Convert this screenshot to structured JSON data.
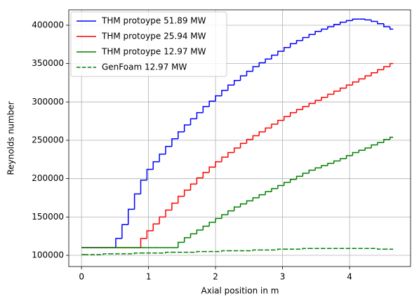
{
  "chart_data": {
    "type": "line",
    "drawstyle": "steps-mid",
    "xlabel": "Axial position in m",
    "ylabel": "Reynolds number",
    "x": [
      0,
      0.093,
      0.186,
      0.279,
      0.372,
      0.465,
      0.558,
      0.651,
      0.744,
      0.837,
      0.93,
      1.023,
      1.116,
      1.209,
      1.302,
      1.395,
      1.488,
      1.581,
      1.674,
      1.767,
      1.86,
      1.953,
      2.046,
      2.139,
      2.232,
      2.325,
      2.418,
      2.511,
      2.604,
      2.697,
      2.79,
      2.883,
      2.976,
      3.069,
      3.162,
      3.255,
      3.348,
      3.441,
      3.534,
      3.627,
      3.72,
      3.813,
      3.906,
      3.999,
      4.092,
      4.185,
      4.278,
      4.371,
      4.464,
      4.557,
      4.65
    ],
    "series": [
      {
        "name": "THM protoype 51.89 MW",
        "color": "#0000ff",
        "dash": false,
        "values": [
          110000,
          110000,
          110000,
          110000,
          110000,
          110000,
          122000,
          140000,
          160000,
          180000,
          198000,
          212000,
          222000,
          232000,
          242000,
          252000,
          261000,
          270000,
          278000,
          286000,
          294000,
          301000,
          308000,
          315000,
          322000,
          328000,
          334000,
          340000,
          346000,
          351000,
          356000,
          361000,
          366000,
          371000,
          376000,
          380000,
          384000,
          388000,
          392000,
          395000,
          398000,
          401000,
          404000,
          406000,
          408000,
          408000,
          407000,
          405000,
          402000,
          398000,
          395000
        ]
      },
      {
        "name": "THM protoype 25.94 MW",
        "color": "#ff0000",
        "dash": false,
        "values": [
          110000,
          110000,
          110000,
          110000,
          110000,
          110000,
          110000,
          110000,
          110000,
          110000,
          122000,
          132000,
          141000,
          150000,
          159000,
          168000,
          177000,
          185000,
          193000,
          201000,
          208000,
          215000,
          222000,
          228000,
          234000,
          240000,
          246000,
          251000,
          256000,
          261000,
          266000,
          271000,
          276000,
          281000,
          286000,
          290000,
          294000,
          298000,
          302000,
          306000,
          310000,
          314000,
          318000,
          322000,
          326000,
          330000,
          334000,
          338000,
          342000,
          346000,
          350000
        ]
      },
      {
        "name": "THM protoype 12.97 MW",
        "color": "#008000",
        "dash": false,
        "values": [
          110000,
          110000,
          110000,
          110000,
          110000,
          110000,
          110000,
          110000,
          110000,
          110000,
          110000,
          110000,
          110000,
          110000,
          110000,
          110000,
          117000,
          123000,
          128000,
          133000,
          138000,
          143000,
          148000,
          153000,
          158000,
          163000,
          167000,
          171000,
          175000,
          179000,
          183000,
          187000,
          191000,
          195000,
          199000,
          203000,
          207000,
          211000,
          214000,
          217000,
          220000,
          223000,
          226000,
          230000,
          234000,
          237000,
          240000,
          244000,
          247000,
          251000,
          254000
        ]
      },
      {
        "name": "GenFoam 12.97 MW",
        "color": "#008000",
        "dash": true,
        "values": [
          101000,
          101000,
          101000,
          101000,
          102000,
          102000,
          102000,
          102000,
          102000,
          103000,
          103000,
          103000,
          103000,
          103000,
          104000,
          104000,
          104000,
          104000,
          104000,
          105000,
          105000,
          105000,
          105000,
          106000,
          106000,
          106000,
          106000,
          106000,
          107000,
          107000,
          107000,
          107000,
          108000,
          108000,
          108000,
          108000,
          109000,
          109000,
          109000,
          109000,
          109000,
          109000,
          109000,
          109000,
          109000,
          109000,
          109000,
          109000,
          108000,
          108000,
          108000
        ]
      }
    ],
    "xlim": [
      -0.19,
      4.91
    ],
    "ylim": [
      85400,
      420100
    ],
    "xticks": [
      0,
      1,
      2,
      3,
      4
    ],
    "yticks": [
      100000,
      150000,
      200000,
      250000,
      300000,
      350000,
      400000
    ],
    "grid": true,
    "legend": "upper left"
  }
}
